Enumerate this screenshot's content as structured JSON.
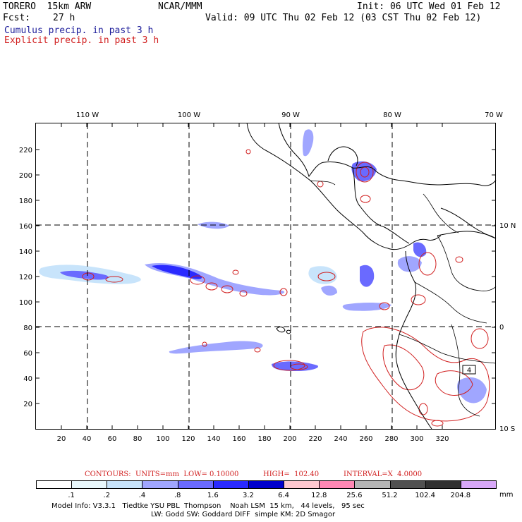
{
  "header": {
    "model": "TORERO  15km ARW",
    "fcst_label": "Fcst:",
    "fcst_value": "27 h",
    "center": "NCAR/MMM",
    "init": "Init: 06 UTC Wed 01 Feb 12",
    "valid": "Valid: 09 UTC Thu 02 Feb 12 (03 CST Thu 02 Feb 12)",
    "field1": "Cumulus precip. in past 3 h",
    "field2": "Explicit precip. in past 3 h"
  },
  "map": {
    "top_lon_labels": [
      "110 W",
      "100 W",
      "90 W",
      "80 W",
      "70 W"
    ],
    "right_lat_labels": [
      "10 N",
      "0",
      "10 S"
    ],
    "x_ticks": [
      "20",
      "40",
      "60",
      "80",
      "100",
      "120",
      "140",
      "160",
      "180",
      "200",
      "220",
      "240",
      "260",
      "280",
      "300",
      "320"
    ],
    "y_ticks": [
      "20",
      "40",
      "60",
      "80",
      "100",
      "120",
      "140",
      "160",
      "180",
      "200",
      "220"
    ],
    "box_label": "4"
  },
  "contours": {
    "units": "CONTOURS:  UNITS=mm  LOW= 0.10000",
    "high": "HIGH=  102.40",
    "interval": "INTERVAL=X  4.0000"
  },
  "legend": {
    "unit": "mm",
    "colors": [
      "#ffffff",
      "#ffffff",
      "#ffffff",
      "#e8f7fb",
      "#c8e4fb",
      "#a0a6ff",
      "#6a6aff",
      "#2a2aff",
      "#0000cc",
      "#ffc8d0",
      "#ff88b4",
      "#b4b4b4",
      "#505050",
      "#303030",
      "#d8a8f8"
    ],
    "labels": [
      ".1",
      ".2",
      ".4",
      ".8",
      "1.6",
      "3.2",
      "6.4",
      "12.8",
      "25.6",
      "51.2",
      "102.4",
      "204.8"
    ]
  },
  "footer": {
    "line1": "Model Info: V3.3.1   Tiedtke YSU PBL  Thompson    Noah LSM  15 km,   44 levels,   95 sec",
    "line2": "LW: Godd SW: Goddard DIFF  simple KM: 2D Smagor"
  }
}
